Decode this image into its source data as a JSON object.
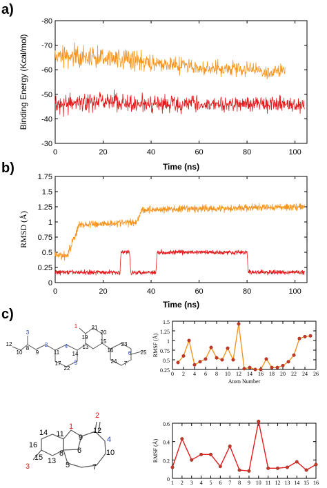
{
  "panels": {
    "a": "a)",
    "b": "b)",
    "c": "c)"
  },
  "colors": {
    "orange": "#F7941D",
    "red": "#E31A1C",
    "marker": "#C0392B",
    "blue": "#1F3FBF"
  },
  "chart_data": [
    {
      "id": "binding-energy",
      "type": "line",
      "ylabel": "Binding Energy (Kcal/mol)",
      "xlabel": "Time (ns)",
      "xlim": [
        0,
        105
      ],
      "ylim": [
        -80,
        -30
      ],
      "y_inverted": true,
      "xticks": [
        0,
        20,
        40,
        60,
        80,
        100
      ],
      "yticks": [
        -80,
        -70,
        -60,
        -50,
        -40,
        -30
      ],
      "series": [
        {
          "color": "#F7941D",
          "x_end": 96,
          "segments": [
            {
              "x": 0,
              "mean": -66,
              "noise": 5
            },
            {
              "x": 20,
              "mean": -65,
              "noise": 5
            },
            {
              "x": 40,
              "mean": -63,
              "noise": 4
            },
            {
              "x": 60,
              "mean": -61,
              "noise": 4
            },
            {
              "x": 80,
              "mean": -60,
              "noise": 4
            },
            {
              "x": 96,
              "mean": -59,
              "noise": 4
            }
          ]
        },
        {
          "color": "#E31A1C",
          "x_end": 104,
          "segments": [
            {
              "x": 0,
              "mean": -46,
              "noise": 5
            },
            {
              "x": 20,
              "mean": -47,
              "noise": 5
            },
            {
              "x": 40,
              "mean": -46,
              "noise": 5
            },
            {
              "x": 60,
              "mean": -46,
              "noise": 4
            },
            {
              "x": 80,
              "mean": -46,
              "noise": 4
            },
            {
              "x": 104,
              "mean": -46,
              "noise": 4
            }
          ]
        }
      ]
    },
    {
      "id": "rmsd",
      "type": "line",
      "ylabel": "RMSD (Å)",
      "xlabel": "Time (ns)",
      "xlim": [
        0,
        105
      ],
      "ylim": [
        0,
        1.75
      ],
      "xticks": [
        0,
        20,
        40,
        60,
        80,
        100
      ],
      "yticks": [
        0,
        0.25,
        0.5,
        0.75,
        1,
        1.25,
        1.5,
        1.75
      ],
      "ytick_labels": [
        "0",
        "0.25",
        "0.5",
        "0.75",
        "1",
        "1.25",
        "1.5",
        "1.75"
      ],
      "series": [
        {
          "color": "#F7941D",
          "x_end": 104,
          "segments": [
            {
              "x": 0,
              "mean": 0.45,
              "noise": 0.1
            },
            {
              "x": 5,
              "mean": 0.45,
              "noise": 0.1
            },
            {
              "x": 10,
              "mean": 0.95,
              "noise": 0.08
            },
            {
              "x": 34,
              "mean": 1.0,
              "noise": 0.08
            },
            {
              "x": 36,
              "mean": 1.2,
              "noise": 0.08
            },
            {
              "x": 104,
              "mean": 1.25,
              "noise": 0.08
            }
          ]
        },
        {
          "color": "#E31A1C",
          "x_end": 104,
          "segments": [
            {
              "x": 0,
              "mean": 0.17,
              "noise": 0.05
            },
            {
              "x": 27,
              "mean": 0.17,
              "noise": 0.05
            },
            {
              "x": 27.5,
              "mean": 0.5,
              "noise": 0.05
            },
            {
              "x": 31,
              "mean": 0.5,
              "noise": 0.05
            },
            {
              "x": 31.5,
              "mean": 0.17,
              "noise": 0.05
            },
            {
              "x": 42,
              "mean": 0.17,
              "noise": 0.05
            },
            {
              "x": 42.5,
              "mean": 0.5,
              "noise": 0.05
            },
            {
              "x": 80,
              "mean": 0.5,
              "noise": 0.05
            },
            {
              "x": 80.5,
              "mean": 0.17,
              "noise": 0.05
            },
            {
              "x": 104,
              "mean": 0.17,
              "noise": 0.05
            }
          ]
        }
      ]
    },
    {
      "id": "rmsf-1",
      "type": "line",
      "ylabel": "RMSF (Å)",
      "xlabel": "Atom Number",
      "xlim": [
        0,
        26
      ],
      "ylim": [
        0.25,
        1.5
      ],
      "xticks": [
        0,
        2,
        4,
        6,
        8,
        10,
        12,
        14,
        16,
        18,
        20,
        22,
        24,
        26
      ],
      "yticks": [
        0.25,
        0.5,
        0.75,
        1,
        1.25,
        1.5
      ],
      "ytick_labels": [
        "0.25",
        "0.5",
        "0.75",
        "1",
        "1.25",
        "1.5"
      ],
      "series": [
        {
          "color": "#F7941D",
          "marker_color": "#C0392B",
          "x": [
            1,
            2,
            3,
            4,
            5,
            6,
            7,
            8,
            9,
            10,
            11,
            12,
            13,
            14,
            15,
            16,
            17,
            18,
            19,
            20,
            21,
            22,
            23,
            24,
            25
          ],
          "values": [
            0.43,
            0.6,
            1.0,
            0.37,
            0.45,
            0.52,
            0.82,
            0.55,
            0.5,
            0.8,
            0.5,
            1.43,
            0.27,
            0.3,
            0.25,
            0.25,
            0.52,
            0.3,
            0.3,
            0.35,
            0.45,
            0.62,
            1.05,
            1.1,
            1.12
          ]
        }
      ]
    },
    {
      "id": "rmsf-2",
      "type": "line",
      "ylabel": "RMSF (Å)",
      "xlabel": "Atom Number",
      "xlim": [
        1,
        16
      ],
      "ylim": [
        0,
        0.6
      ],
      "xticks": [
        1,
        2,
        3,
        4,
        5,
        6,
        7,
        8,
        9,
        10,
        11,
        12,
        13,
        14,
        15,
        16
      ],
      "yticks": [
        0,
        0.2,
        0.4,
        0.6
      ],
      "ytick_labels": [
        "0",
        "0.2",
        "0.4",
        "0.6"
      ],
      "series": [
        {
          "color": "#E31A1C",
          "marker_color": "#C0392B",
          "x": [
            1,
            2,
            3,
            4,
            5,
            6,
            7,
            8,
            9,
            10,
            11,
            12,
            13,
            14,
            15,
            16
          ],
          "values": [
            0.12,
            0.43,
            0.2,
            0.26,
            0.26,
            0.13,
            0.35,
            0.09,
            0.08,
            0.62,
            0.11,
            0.11,
            0.12,
            0.18,
            0.09,
            0.15
          ]
        }
      ]
    }
  ],
  "molecule1": {
    "atoms": [
      {
        "id": "1",
        "color": "#E31A1C"
      },
      {
        "id": "2",
        "color": "#1F3FBF"
      },
      {
        "id": "3",
        "color": "#1F3FBF"
      },
      {
        "id": "4",
        "color": "#1F3FBF"
      },
      {
        "id": "5",
        "color": "#1F3FBF"
      },
      {
        "id": "6",
        "color": "#1F3FBF"
      },
      {
        "id": "7",
        "color": "#000000"
      },
      {
        "id": "8",
        "color": "#000000"
      },
      {
        "id": "9",
        "color": "#000000"
      },
      {
        "id": "10",
        "color": "#000000"
      },
      {
        "id": "11",
        "color": "#000000"
      },
      {
        "id": "12",
        "color": "#000000"
      },
      {
        "id": "13",
        "color": "#000000"
      },
      {
        "id": "14",
        "color": "#000000"
      },
      {
        "id": "15",
        "color": "#000000"
      },
      {
        "id": "16",
        "color": "#000000"
      },
      {
        "id": "17",
        "color": "#000000"
      },
      {
        "id": "19",
        "color": "#000000"
      },
      {
        "id": "20",
        "color": "#000000"
      },
      {
        "id": "21",
        "color": "#000000"
      },
      {
        "id": "22",
        "color": "#000000"
      },
      {
        "id": "23",
        "color": "#000000"
      },
      {
        "id": "24",
        "color": "#000000"
      },
      {
        "id": "25",
        "color": "#000000"
      }
    ]
  },
  "molecule2": {
    "atoms": [
      {
        "id": "1",
        "color": "#E31A1C"
      },
      {
        "id": "2",
        "color": "#E31A1C"
      },
      {
        "id": "3",
        "color": "#E31A1C"
      },
      {
        "id": "4",
        "color": "#1F3FBF"
      },
      {
        "id": "5",
        "color": "#000000"
      },
      {
        "id": "6",
        "color": "#000000"
      },
      {
        "id": "7",
        "color": "#000000"
      },
      {
        "id": "8",
        "color": "#000000"
      },
      {
        "id": "9",
        "color": "#000000"
      },
      {
        "id": "10",
        "color": "#000000"
      },
      {
        "id": "11",
        "color": "#000000"
      },
      {
        "id": "12",
        "color": "#000000"
      },
      {
        "id": "13",
        "color": "#000000"
      },
      {
        "id": "14",
        "color": "#000000"
      },
      {
        "id": "15",
        "color": "#000000"
      },
      {
        "id": "16",
        "color": "#000000"
      }
    ]
  }
}
